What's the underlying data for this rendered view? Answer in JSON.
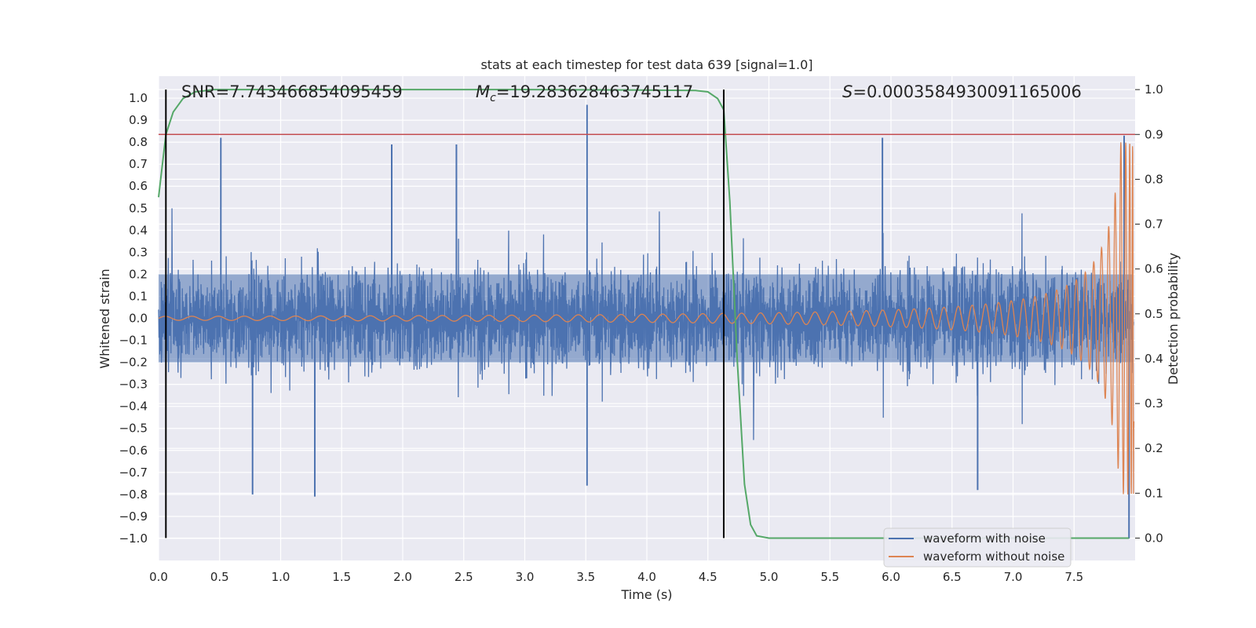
{
  "chart_data": {
    "type": "line",
    "title": "stats at each timestep for test data 639 [signal=1.0]",
    "xlabel": "Time (s)",
    "ylabel": "Whitened strain",
    "y2label": "Detection probability",
    "xlim": [
      0.0,
      8.0
    ],
    "ylim": [
      -1.1,
      1.1
    ],
    "y2lim": [
      -0.05,
      1.03
    ],
    "x_ticks": [
      "0.0",
      "0.5",
      "1.0",
      "1.5",
      "2.0",
      "2.5",
      "3.0",
      "3.5",
      "4.0",
      "4.5",
      "5.0",
      "5.5",
      "6.0",
      "6.5",
      "7.0",
      "7.5"
    ],
    "y_ticks": [
      "1.0",
      "0.9",
      "0.8",
      "0.7",
      "0.6",
      "0.5",
      "0.4",
      "0.3",
      "0.2",
      "0.1",
      "0.0",
      "−0.1",
      "−0.2",
      "−0.3",
      "−0.4",
      "−0.5",
      "−0.6",
      "−0.7",
      "−0.8",
      "−0.9",
      "−1.0"
    ],
    "y2_ticks": [
      "1.0",
      "0.9",
      "0.8",
      "0.7",
      "0.6",
      "0.5",
      "0.4",
      "0.3",
      "0.2",
      "0.1",
      "0.0"
    ],
    "grid": true,
    "legend_position": "bottom-right",
    "colors": {
      "background": "#eaeaf2",
      "noise": "#4c72b0",
      "clean": "#dd8452",
      "prob": "#55a868",
      "threshold": "#c44e52",
      "marker": "#000000"
    },
    "annotations": {
      "snr": "SNR=7.743466854095459",
      "mc_symbol": "M",
      "mc_sub": "c",
      "mc_value": "=19.283628463745117",
      "s_symbol": "S",
      "s_value": "=0.0003584930091165006"
    },
    "series": [
      {
        "name": "waveform with noise",
        "axis": "left",
        "style": "noise",
        "envelope_p99": 0.4,
        "notable_spikes": [
          [
            0.51,
            0.82
          ],
          [
            1.91,
            0.79
          ],
          [
            2.44,
            0.79
          ],
          [
            3.51,
            0.97
          ],
          [
            5.93,
            0.82
          ],
          [
            7.91,
            0.83
          ],
          [
            0.77,
            -0.8
          ],
          [
            1.28,
            -0.81
          ],
          [
            3.51,
            -0.76
          ],
          [
            6.71,
            -0.78
          ],
          [
            7.95,
            -1.0
          ]
        ]
      },
      {
        "name": "waveform without noise",
        "axis": "left",
        "style": "chirp",
        "amplitude_start": 0.005,
        "amplitude_end": 0.8,
        "cycles": 125
      },
      {
        "name": "detection probability",
        "axis": "right",
        "x": [
          0.0,
          0.06,
          0.12,
          0.2,
          0.3,
          0.45,
          1.0,
          2.0,
          3.0,
          4.0,
          4.4,
          4.5,
          4.58,
          4.63,
          4.68,
          4.74,
          4.8,
          4.85,
          4.9,
          5.0,
          6.0,
          7.0,
          7.95
        ],
        "y": [
          0.76,
          0.9,
          0.95,
          0.98,
          0.995,
          1.0,
          1.0,
          1.0,
          1.0,
          0.999,
          0.998,
          0.995,
          0.98,
          0.955,
          0.75,
          0.4,
          0.12,
          0.03,
          0.005,
          0.0,
          0.0,
          0.0,
          0.0
        ]
      }
    ],
    "threshold": 0.9,
    "vertical_markers": [
      0.06,
      4.63
    ]
  }
}
